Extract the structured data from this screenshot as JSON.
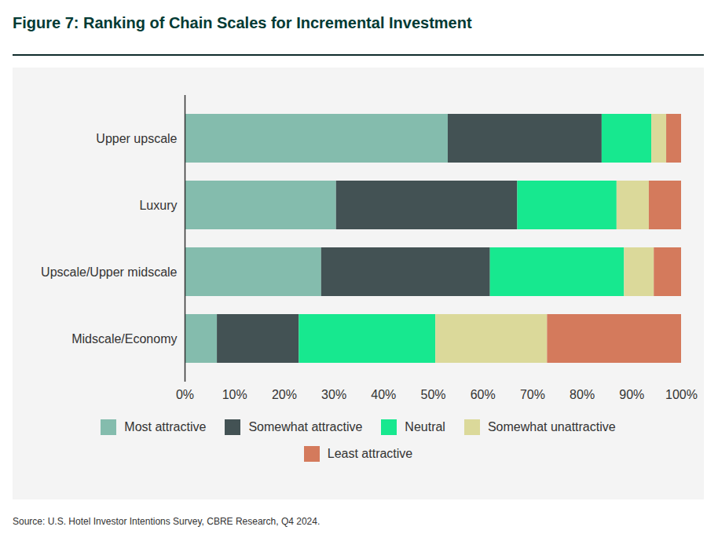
{
  "chart_data": {
    "type": "bar",
    "title": "Figure 7: Ranking of Chain Scales for Incremental Investment",
    "source": "Source: U.S. Hotel Investor Intentions Survey, CBRE Research, Q4 2024.",
    "orientation": "horizontal",
    "stacked": true,
    "grid": false,
    "legend": "bottom",
    "categories": [
      "Upper upscale",
      "Luxury",
      "Upscale/Upper midscale",
      "Midscale/Economy"
    ],
    "series": [
      {
        "name": "Most attractive",
        "color": "#84bcad",
        "values": [
          53,
          30.5,
          27.5,
          6.5
        ]
      },
      {
        "name": "Somewhat attractive",
        "color": "#435254",
        "values": [
          31,
          36.5,
          34,
          16.5
        ]
      },
      {
        "name": "Neutral",
        "color": "#17e88f",
        "values": [
          10,
          20,
          27,
          27.5
        ]
      },
      {
        "name": "Somewhat unattractive",
        "color": "#dbd99a",
        "values": [
          3,
          6.5,
          6,
          22.5
        ]
      },
      {
        "name": "Least attractive",
        "color": "#d47a5c",
        "values": [
          3,
          6.5,
          5.5,
          27
        ]
      }
    ],
    "xlim": [
      0,
      100
    ],
    "xticks": [
      {
        "value": 0,
        "label": "0%"
      },
      {
        "value": 10,
        "label": "10%"
      },
      {
        "value": 20,
        "label": "20%"
      },
      {
        "value": 30,
        "label": "30%"
      },
      {
        "value": 40,
        "label": "40%"
      },
      {
        "value": 50,
        "label": "50%"
      },
      {
        "value": 60,
        "label": "60%"
      },
      {
        "value": 70,
        "label": "70%"
      },
      {
        "value": 80,
        "label": "80%"
      },
      {
        "value": 90,
        "label": "90%"
      },
      {
        "value": 100,
        "label": "100%"
      }
    ]
  }
}
